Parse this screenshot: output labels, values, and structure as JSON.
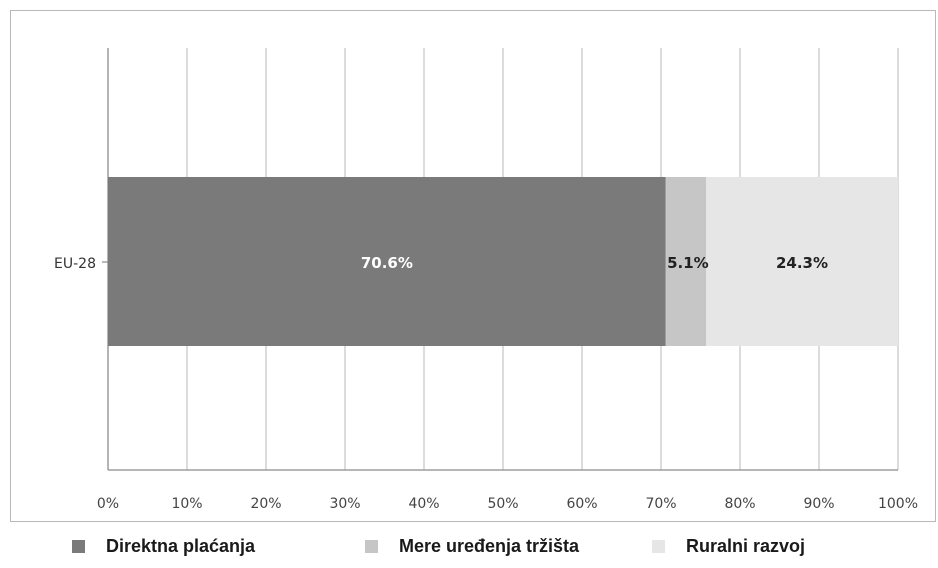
{
  "chart_data": {
    "type": "bar",
    "orientation": "horizontal",
    "stacked": true,
    "categories": [
      "EU-28"
    ],
    "series": [
      {
        "name": "Direktna plaćanja",
        "values": [
          70.6
        ],
        "label": "70.6%",
        "color": "#7a7a7a",
        "label_color": "#ffffff"
      },
      {
        "name": "Mere uređenja tržišta",
        "values": [
          5.1
        ],
        "label": "5.1%",
        "color": "#c6c6c6",
        "label_color": "#222222"
      },
      {
        "name": "Ruralni razvoj",
        "values": [
          24.3
        ],
        "label": "24.3%",
        "color": "#e6e6e6",
        "label_color": "#222222"
      }
    ],
    "xlim": [
      0,
      100
    ],
    "x_ticks": [
      "0%",
      "10%",
      "20%",
      "30%",
      "40%",
      "50%",
      "60%",
      "70%",
      "80%",
      "90%",
      "100%"
    ],
    "grid": "vertical",
    "legend": "bottom"
  }
}
